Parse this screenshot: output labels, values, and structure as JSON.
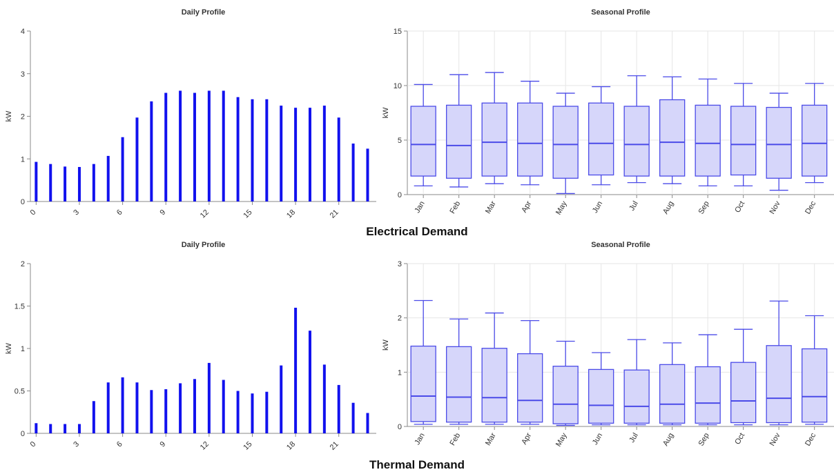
{
  "sections": [
    {
      "title": "Electrical Demand"
    },
    {
      "title": "Thermal Demand"
    }
  ],
  "colors": {
    "bar": "#1111ee",
    "box_stroke": "#4a4ae8",
    "box_fill": "#d6d6fa",
    "grid": "#e6e6e6",
    "axis": "#888888",
    "text": "#333333"
  },
  "chart_data": [
    {
      "id": "elec-daily",
      "type": "bar",
      "title": "Daily Profile",
      "ylabel": "kW",
      "xlabel": "",
      "ylim": [
        0,
        4
      ],
      "yticks": [
        0,
        1,
        2,
        3,
        4
      ],
      "xticks": [
        0,
        3,
        6,
        9,
        12,
        15,
        18,
        21
      ],
      "grid": false,
      "x": [
        0,
        1,
        2,
        3,
        4,
        5,
        6,
        7,
        8,
        9,
        10,
        11,
        12,
        13,
        14,
        15,
        16,
        17,
        18,
        19,
        20,
        21,
        22,
        23
      ],
      "values": [
        0.93,
        0.88,
        0.82,
        0.81,
        0.88,
        1.07,
        1.51,
        1.97,
        2.35,
        2.55,
        2.6,
        2.55,
        2.6,
        2.6,
        2.45,
        2.4,
        2.4,
        2.25,
        2.2,
        2.2,
        2.25,
        1.97,
        1.36,
        1.24
      ]
    },
    {
      "id": "elec-seasonal",
      "type": "box",
      "title": "Seasonal Profile",
      "ylabel": "kW",
      "ylim": [
        0,
        15
      ],
      "yticks": [
        0,
        5,
        10,
        15
      ],
      "grid": true,
      "categories": [
        "Jan",
        "Feb",
        "Mar",
        "Apr",
        "May",
        "Jun",
        "Jul",
        "Aug",
        "Sep",
        "Oct",
        "Nov",
        "Dec"
      ],
      "boxes": [
        {
          "min": 0.8,
          "q1": 1.7,
          "median": 4.6,
          "q3": 8.1,
          "max": 10.1
        },
        {
          "min": 0.7,
          "q1": 1.5,
          "median": 4.5,
          "q3": 8.2,
          "max": 11.0
        },
        {
          "min": 1.0,
          "q1": 1.7,
          "median": 4.8,
          "q3": 8.4,
          "max": 11.2
        },
        {
          "min": 0.9,
          "q1": 1.7,
          "median": 4.7,
          "q3": 8.4,
          "max": 10.4
        },
        {
          "min": 0.1,
          "q1": 1.5,
          "median": 4.6,
          "q3": 8.1,
          "max": 9.3
        },
        {
          "min": 0.9,
          "q1": 1.8,
          "median": 4.7,
          "q3": 8.4,
          "max": 9.9
        },
        {
          "min": 1.1,
          "q1": 1.7,
          "median": 4.6,
          "q3": 8.1,
          "max": 10.9
        },
        {
          "min": 1.0,
          "q1": 1.7,
          "median": 4.8,
          "q3": 8.7,
          "max": 10.8
        },
        {
          "min": 0.8,
          "q1": 1.7,
          "median": 4.7,
          "q3": 8.2,
          "max": 10.6
        },
        {
          "min": 0.8,
          "q1": 1.8,
          "median": 4.6,
          "q3": 8.1,
          "max": 10.2
        },
        {
          "min": 0.4,
          "q1": 1.5,
          "median": 4.6,
          "q3": 8.0,
          "max": 9.3
        },
        {
          "min": 1.1,
          "q1": 1.7,
          "median": 4.7,
          "q3": 8.2,
          "max": 10.2
        }
      ]
    },
    {
      "id": "thermal-daily",
      "type": "bar",
      "title": "Daily Profile",
      "ylabel": "kW",
      "xlabel": "",
      "ylim": [
        0,
        2
      ],
      "yticks": [
        0,
        0.5,
        1,
        1.5,
        2
      ],
      "xticks": [
        0,
        3,
        6,
        9,
        12,
        15,
        18,
        21
      ],
      "grid": false,
      "x": [
        0,
        1,
        2,
        3,
        4,
        5,
        6,
        7,
        8,
        9,
        10,
        11,
        12,
        13,
        14,
        15,
        16,
        17,
        18,
        19,
        20,
        21,
        22,
        23
      ],
      "values": [
        0.12,
        0.11,
        0.11,
        0.11,
        0.38,
        0.6,
        0.66,
        0.6,
        0.51,
        0.52,
        0.59,
        0.64,
        0.83,
        0.63,
        0.5,
        0.47,
        0.49,
        0.8,
        1.48,
        1.21,
        0.81,
        0.57,
        0.36,
        0.24
      ]
    },
    {
      "id": "thermal-seasonal",
      "type": "box",
      "title": "Seasonal Profile",
      "ylabel": "kW",
      "ylim": [
        0,
        3
      ],
      "yticks": [
        0,
        1,
        2,
        3
      ],
      "grid": true,
      "categories": [
        "Jan",
        "Feb",
        "Mar",
        "Apr",
        "May",
        "Jun",
        "Jul",
        "Aug",
        "Sep",
        "Oct",
        "Nov",
        "Dec"
      ],
      "boxes": [
        {
          "min": 0.04,
          "q1": 0.09,
          "median": 0.56,
          "q3": 1.48,
          "max": 2.32
        },
        {
          "min": 0.04,
          "q1": 0.08,
          "median": 0.54,
          "q3": 1.47,
          "max": 1.98
        },
        {
          "min": 0.04,
          "q1": 0.08,
          "median": 0.53,
          "q3": 1.44,
          "max": 2.09
        },
        {
          "min": 0.04,
          "q1": 0.08,
          "median": 0.48,
          "q3": 1.34,
          "max": 1.95
        },
        {
          "min": 0.02,
          "q1": 0.05,
          "median": 0.41,
          "q3": 1.11,
          "max": 1.57
        },
        {
          "min": 0.03,
          "q1": 0.06,
          "median": 0.39,
          "q3": 1.05,
          "max": 1.36
        },
        {
          "min": 0.03,
          "q1": 0.06,
          "median": 0.37,
          "q3": 1.04,
          "max": 1.6
        },
        {
          "min": 0.03,
          "q1": 0.06,
          "median": 0.41,
          "q3": 1.14,
          "max": 1.54
        },
        {
          "min": 0.03,
          "q1": 0.06,
          "median": 0.43,
          "q3": 1.1,
          "max": 1.69
        },
        {
          "min": 0.03,
          "q1": 0.07,
          "median": 0.47,
          "q3": 1.18,
          "max": 1.79
        },
        {
          "min": 0.03,
          "q1": 0.07,
          "median": 0.52,
          "q3": 1.49,
          "max": 2.31
        },
        {
          "min": 0.04,
          "q1": 0.08,
          "median": 0.55,
          "q3": 1.43,
          "max": 2.04
        }
      ]
    }
  ]
}
